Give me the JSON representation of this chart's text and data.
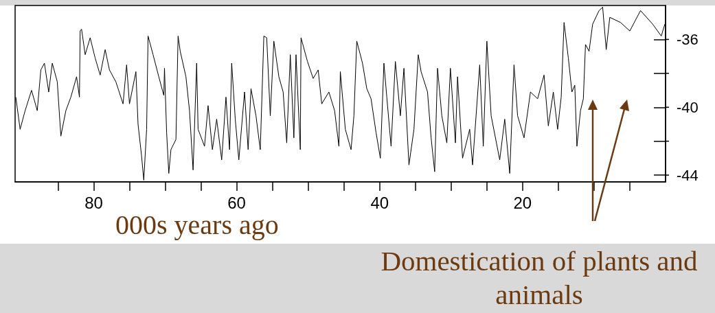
{
  "chart_data": {
    "type": "line",
    "xlabel": "000s years ago",
    "annotations": [
      "Domestication of plants and animals"
    ],
    "xlim": [
      91,
      0
    ],
    "ylim": [
      -44.4,
      -34.0
    ],
    "xticks": [
      {
        "value": 85,
        "label": null
      },
      80,
      {
        "value": 75,
        "label": null
      },
      {
        "value": 70,
        "label": null
      },
      {
        "value": 65,
        "label": null
      },
      60,
      {
        "value": 55,
        "label": null
      },
      {
        "value": 50,
        "label": null
      },
      {
        "value": 45,
        "label": null
      },
      40,
      {
        "value": 35,
        "label": null
      },
      {
        "value": 30,
        "label": null
      },
      {
        "value": 25,
        "label": null
      },
      20,
      {
        "value": 15,
        "label": null
      },
      {
        "value": 10,
        "label": null
      },
      {
        "value": 5,
        "label": null
      }
    ],
    "yticks": [
      -36,
      {
        "value": -38,
        "label": null
      },
      -40,
      {
        "value": -42,
        "label": null
      },
      -44
    ],
    "series": [
      {
        "color": "#000000",
        "x": [
          90.9,
          90.3,
          89.6,
          88.7,
          87.9,
          87.4,
          86.9,
          86.3,
          85.8,
          85.1,
          84.6,
          83.9,
          83.2,
          82.4,
          82.0,
          81.9,
          81.7,
          81.2,
          80.5,
          79.8,
          79.1,
          78.4,
          77.8,
          76.9,
          75.9,
          75.4,
          75.0,
          74.1,
          73.8,
          73.3,
          73.0,
          72.6,
          72.4,
          71.7,
          70.9,
          70.2,
          70.1,
          69.8,
          69.5,
          69.2,
          68.5,
          68.2,
          67.9,
          67.1,
          66.6,
          66.1,
          65.6,
          65.4,
          64.5,
          64.0,
          63.4,
          62.8,
          62.1,
          61.5,
          61.0,
          60.7,
          60.2,
          59.7,
          58.9,
          58.4,
          58.0,
          57.3,
          56.7,
          56.2,
          55.8,
          55.3,
          54.8,
          54.1,
          53.5,
          53.0,
          52.5,
          52.0,
          51.7,
          51.1,
          51.0,
          50.1,
          49.3,
          48.6,
          48.1,
          47.1,
          46.3,
          45.7,
          45.5,
          44.8,
          44.0,
          43.6,
          43.2,
          42.4,
          41.8,
          41.2,
          40.5,
          39.9,
          39.4,
          39.0,
          38.4,
          37.8,
          37.1,
          36.6,
          35.9,
          35.2,
          34.6,
          34.2,
          33.3,
          32.8,
          32.3,
          31.9,
          31.3,
          30.6,
          30.1,
          29.4,
          29.1,
          28.4,
          27.4,
          27.0,
          26.0,
          25.5,
          25.0,
          24.4,
          23.2,
          22.5,
          21.8,
          21.2,
          20.7,
          19.8,
          18.9,
          17.9,
          17.0,
          16.4,
          15.7,
          15.1,
          14.6,
          14.2,
          13.6,
          13.1,
          12.7,
          12.4,
          11.9,
          11.5,
          11.2,
          10.7,
          10.2,
          9.3,
          8.8,
          8.3,
          7.8,
          6.3,
          5.0,
          3.5,
          1.8,
          0.6,
          0.1
        ],
        "values": [
          -39.4,
          -41.3,
          -40.2,
          -39.0,
          -40.2,
          -37.8,
          -37.4,
          -39.1,
          -37.4,
          -38.5,
          -41.7,
          -40.2,
          -39.4,
          -38.2,
          -39.4,
          -35.5,
          -35.4,
          -36.9,
          -35.9,
          -37.1,
          -38.1,
          -36.6,
          -37.8,
          -38.5,
          -39.8,
          -37.5,
          -39.8,
          -37.9,
          -41.0,
          -42.9,
          -44.3,
          -41.3,
          -35.8,
          -36.9,
          -38.2,
          -39.3,
          -37.7,
          -41.5,
          -43.9,
          -42.5,
          -41.9,
          -35.8,
          -36.7,
          -38.2,
          -40.2,
          -43.7,
          -37.4,
          -41.3,
          -42.3,
          -39.9,
          -42.5,
          -40.7,
          -43.1,
          -39.4,
          -42.5,
          -37.4,
          -40.7,
          -43.1,
          -39.1,
          -42.5,
          -38.9,
          -40.5,
          -42.5,
          -35.8,
          -35.9,
          -40.5,
          -36.1,
          -38.2,
          -39.1,
          -42.1,
          -36.9,
          -41.8,
          -36.9,
          -42.5,
          -35.9,
          -37.3,
          -38.3,
          -37.8,
          -39.8,
          -39.1,
          -40.2,
          -42.3,
          -37.9,
          -41.3,
          -42.5,
          -40.5,
          -36.1,
          -37.4,
          -38.9,
          -39.5,
          -41.5,
          -43.0,
          -37.4,
          -39.4,
          -42.3,
          -37.3,
          -40.5,
          -37.7,
          -43.4,
          -41.3,
          -36.9,
          -37.9,
          -39.1,
          -41.8,
          -43.8,
          -37.7,
          -40.5,
          -42.1,
          -37.7,
          -42.1,
          -38.2,
          -43.0,
          -41.3,
          -43.4,
          -37.5,
          -42.3,
          -36.1,
          -40.5,
          -43.1,
          -40.7,
          -43.9,
          -37.5,
          -40.5,
          -41.8,
          -39.1,
          -39.5,
          -38.1,
          -41.1,
          -39.1,
          -41.3,
          -39.4,
          -35.0,
          -37.1,
          -39.1,
          -38.7,
          -42.3,
          -40.2,
          -39.5,
          -36.3,
          -36.7,
          -35.1,
          -34.3,
          -34.1,
          -36.6,
          -34.7,
          -35.0,
          -35.5,
          -34.3,
          -35.1,
          -35.8,
          -35.1
        ]
      }
    ]
  }
}
